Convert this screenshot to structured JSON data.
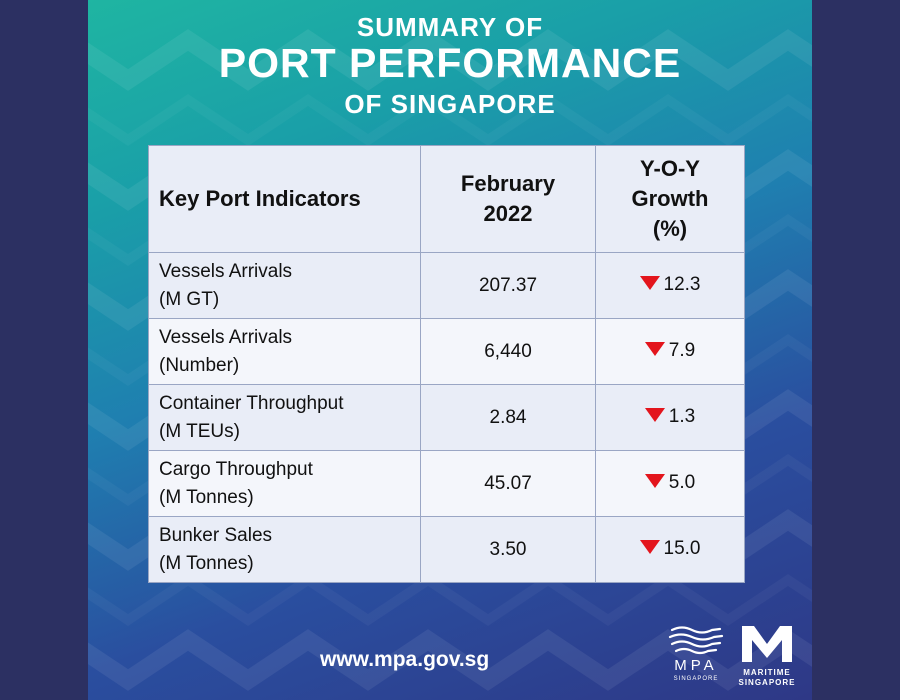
{
  "header": {
    "line1": "SUMMARY OF",
    "line2": "PORT PERFORMANCE",
    "line3": "OF SINGAPORE"
  },
  "table": {
    "headers": {
      "indicator": "Key Port Indicators",
      "month_line1": "February",
      "month_line2": "2022",
      "growth_line1": "Y-O-Y",
      "growth_line2": "Growth",
      "growth_line3": "(%)"
    },
    "rows": [
      {
        "label_line1": "Vessels Arrivals",
        "label_line2": "(M GT)",
        "value": "207.37",
        "growth": "12.3",
        "direction": "down"
      },
      {
        "label_line1": "Vessels Arrivals",
        "label_line2": "(Number)",
        "value": "6,440",
        "growth": "7.9",
        "direction": "down"
      },
      {
        "label_line1": "Container Throughput",
        "label_line2": "(M TEUs)",
        "value": "2.84",
        "growth": "1.3",
        "direction": "down"
      },
      {
        "label_line1": "Cargo Throughput",
        "label_line2": "(M Tonnes)",
        "value": "45.07",
        "growth": "5.0",
        "direction": "down"
      },
      {
        "label_line1": "Bunker Sales",
        "label_line2": "(M Tonnes)",
        "value": "3.50",
        "growth": "15.0",
        "direction": "down"
      }
    ]
  },
  "footer": {
    "website": "www.mpa.gov.sg",
    "mpa_logo_text": "MPA",
    "mpa_logo_sub": "SINGAPORE",
    "ms_logo_line1": "MARITIME",
    "ms_logo_line2": "SINGAPORE"
  },
  "colors": {
    "arrow_down": "#e3151d",
    "page_border": "#2c3062"
  },
  "icons": {
    "growth_direction": "down-triangle-icon",
    "mpa_logo": "mpa-waves-logo-icon",
    "ms_logo": "maritime-singapore-m-logo-icon"
  }
}
